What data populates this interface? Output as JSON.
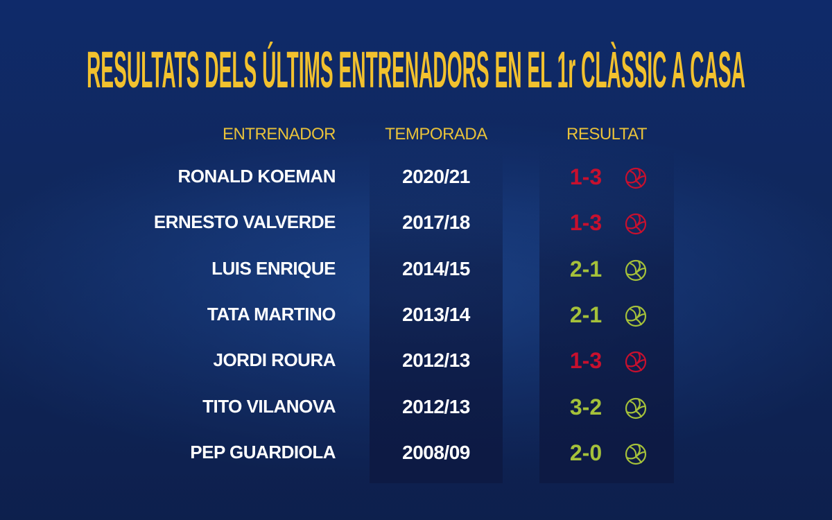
{
  "title": "RESULTATS DELS ÚLTIMS ENTRENADORS EN EL 1r CLÀSSIC A CASA",
  "colors": {
    "title": "#f2c12e",
    "loss": "#c8102e",
    "win": "#a5c13a"
  },
  "headers": {
    "coach": "ENTRENADOR",
    "season": "TEMPORADA",
    "result": "RESULTAT"
  },
  "rows": [
    {
      "coach": "RONALD KOEMAN",
      "season": "2020/21",
      "result": "1-3",
      "outcome": "loss",
      "icon": "football-icon"
    },
    {
      "coach": "ERNESTO VALVERDE",
      "season": "2017/18",
      "result": "1-3",
      "outcome": "loss",
      "icon": "football-icon"
    },
    {
      "coach": "LUIS ENRIQUE",
      "season": "2014/15",
      "result": "2-1",
      "outcome": "win",
      "icon": "football-icon"
    },
    {
      "coach": "TATA MARTINO",
      "season": "2013/14",
      "result": "2-1",
      "outcome": "win",
      "icon": "football-icon"
    },
    {
      "coach": "JORDI ROURA",
      "season": "2012/13",
      "result": "1-3",
      "outcome": "loss",
      "icon": "football-icon"
    },
    {
      "coach": "TITO VILANOVA",
      "season": "2012/13",
      "result": "3-2",
      "outcome": "win",
      "icon": "football-icon"
    },
    {
      "coach": "PEP GUARDIOLA",
      "season": "2008/09",
      "result": "2-0",
      "outcome": "win",
      "icon": "football-icon"
    }
  ]
}
